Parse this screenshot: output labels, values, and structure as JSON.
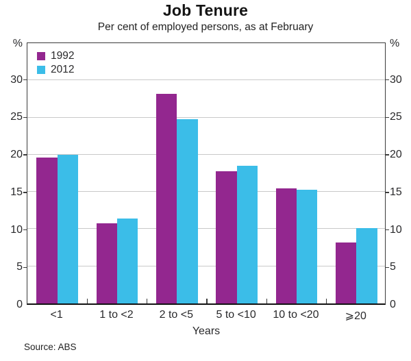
{
  "header": {
    "title": "Job Tenure",
    "subtitle": "Per cent of employed persons, as at February"
  },
  "chart_data": {
    "type": "bar",
    "title": "Job Tenure",
    "subtitle": "Per cent of employed persons, as at February",
    "categories": [
      "<1",
      "1 to <2",
      "2 to <5",
      "5 to <10",
      "10 to <20",
      "⩾20"
    ],
    "series": [
      {
        "name": "1992",
        "color": "#93278F",
        "values": [
          19.6,
          10.8,
          28.2,
          17.8,
          15.5,
          8.2
        ]
      },
      {
        "name": "2012",
        "color": "#3BBDE8",
        "values": [
          20.0,
          11.4,
          24.8,
          18.5,
          15.3,
          10.1
        ]
      }
    ],
    "xlabel": "Years",
    "ylabel": "%",
    "ylim": [
      0,
      35
    ],
    "yticks": [
      0,
      5,
      10,
      15,
      20,
      25,
      30
    ],
    "grid": true,
    "legend_position": "top-left"
  },
  "footer": {
    "source": "Source: ABS"
  },
  "colors": {
    "series_1992": "#93278F",
    "series_2012": "#3BBDE8",
    "gridline": "#c9c9c9",
    "frame": "#3a3a3a",
    "axis": "#111111",
    "text": "#29292b"
  }
}
